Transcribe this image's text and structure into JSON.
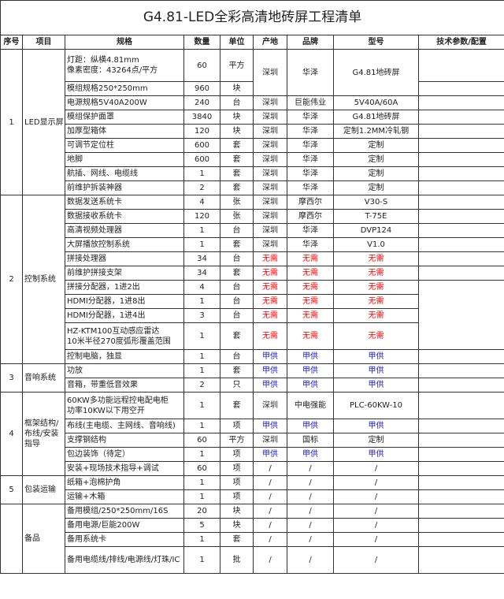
{
  "title": "G4.81-LED全彩高清地砖屏工程清单",
  "headers": [
    "序号",
    "项目",
    "规格",
    "数量",
    "单位",
    "产地",
    "品牌",
    "型号",
    "技术参数/配置"
  ],
  "colors": {
    "无需": "#ff0000",
    "甲供": "#1a1acc"
  },
  "sections": [
    {
      "no": "1",
      "name": "LED显示屏",
      "rows": [
        {
          "spec": "灯距：纵横4.81mm\n像素密度：43264点/平方",
          "qty": "60",
          "unit": "平方",
          "origin": "深圳",
          "brand": "华泽",
          "model": "G4.81地砖屏",
          "tech": ""
        },
        {
          "spec": "模组规格250*250mm",
          "qty": "960",
          "unit": "块",
          "tech": ""
        },
        {
          "spec": "电源规格5V40A200W",
          "qty": "240",
          "unit": "台",
          "origin": "深圳",
          "brand": "巨能伟业",
          "model": "5V40A/60A",
          "tech": ""
        },
        {
          "spec": "模组保护面罩",
          "qty": "3840",
          "unit": "块",
          "origin": "深圳",
          "brand": "华泽",
          "model": "G4.81地砖屏",
          "tech": ""
        },
        {
          "spec": "加厚型箱体",
          "qty": "120",
          "unit": "块",
          "origin": "深圳",
          "brand": "华泽",
          "model": "定制1.2MM冷轧钢",
          "tech": ""
        },
        {
          "spec": "可调节定位柱",
          "qty": "600",
          "unit": "套",
          "origin": "深圳",
          "brand": "华泽",
          "model": "定制",
          "tech": ""
        },
        {
          "spec": "地脚",
          "qty": "600",
          "unit": "套",
          "origin": "深圳",
          "brand": "华泽",
          "model": "定制",
          "tech": ""
        },
        {
          "spec": "航插、网线、电缆线",
          "qty": "1",
          "unit": "套",
          "origin": "深圳",
          "brand": "华泽",
          "model": "定制",
          "tech": ""
        },
        {
          "spec": "前维护拆装神器",
          "qty": "2",
          "unit": "套",
          "origin": "深圳",
          "brand": "华泽",
          "model": "定制",
          "tech": ""
        }
      ]
    },
    {
      "no": "2",
      "name": "控制系统",
      "rows": [
        {
          "spec": "数据发送系统卡",
          "qty": "4",
          "unit": "张",
          "origin": "深圳",
          "brand": "摩西尔",
          "model": "V30-S",
          "tech": ""
        },
        {
          "spec": "数据接收系统卡",
          "qty": "120",
          "unit": "张",
          "origin": "深圳",
          "brand": "摩西尔",
          "model": "T-75E",
          "tech": ""
        },
        {
          "spec": "高清视频处理器",
          "qty": "1",
          "unit": "台",
          "origin": "深圳",
          "brand": "华泽",
          "model": "DVP124",
          "tech": ""
        },
        {
          "spec": "大屏播放控制系统",
          "qty": "1",
          "unit": "套",
          "origin": "深圳",
          "brand": "华泽",
          "model": "V1.0",
          "tech": ""
        },
        {
          "spec": "拼接处理器",
          "qty": "34",
          "unit": "台",
          "origin": "无需",
          "brand": "无需",
          "model": "无需",
          "tech": ""
        },
        {
          "spec": "前维护拼接支架",
          "qty": "34",
          "unit": "套",
          "origin": "无需",
          "brand": "无需",
          "model": "无需",
          "tech": ""
        },
        {
          "spec": "拼接分配器，1进2出",
          "qty": "4",
          "unit": "台",
          "origin": "无需",
          "brand": "无需",
          "model": "无需",
          "tech": ""
        },
        {
          "spec": "HDMI分配器，1进8出",
          "qty": "1",
          "unit": "台",
          "origin": "无需",
          "brand": "无需",
          "model": "无需",
          "tech": ""
        },
        {
          "spec": "HDMI分配器，1进4出",
          "qty": "3",
          "unit": "台",
          "origin": "无需",
          "brand": "无需",
          "model": "无需",
          "tech": ""
        },
        {
          "spec": "HZ-KTM100互动感应雷达\n10米半径270度弧形覆盖范围",
          "qty": "1",
          "unit": "套",
          "origin": "无需",
          "brand": "无需",
          "model": "无需",
          "tech": ""
        },
        {
          "spec": "控制电脑，独显",
          "qty": "1",
          "unit": "台",
          "origin": "甲供",
          "brand": "甲供",
          "model": "甲供",
          "tech": ""
        }
      ]
    },
    {
      "no": "3",
      "name": "音响系统",
      "rows": [
        {
          "spec": "功放",
          "qty": "1",
          "unit": "套",
          "origin": "甲供",
          "brand": "甲供",
          "model": "甲供",
          "tech": ""
        },
        {
          "spec": "音箱，带重低音效果",
          "qty": "2",
          "unit": "只",
          "origin": "甲供",
          "brand": "甲供",
          "model": "甲供",
          "tech": ""
        }
      ]
    },
    {
      "no": "4",
      "name": "框架结构/\n布线/安装\n指导",
      "rows": [
        {
          "spec": "60KW多功能远程控电配电柜\n功率10KW以下用空开",
          "qty": "1",
          "unit": "套",
          "origin": "深圳",
          "brand": "中电强能",
          "model": "PLC-60KW-10",
          "tech": ""
        },
        {
          "spec": "布线(主电缆、主网线、音响线)",
          "qty": "1",
          "unit": "项",
          "origin": "甲供",
          "brand": "甲供",
          "model": "甲供",
          "tech": ""
        },
        {
          "spec": "支撑钢结构",
          "qty": "60",
          "unit": "平方",
          "origin": "深圳",
          "brand": "国标",
          "model": "定制",
          "tech": ""
        },
        {
          "spec": "包边装饰（待定）",
          "qty": "1",
          "unit": "项",
          "origin": "甲供",
          "brand": "甲供",
          "model": "甲供",
          "tech": ""
        },
        {
          "spec": "安装+现场技术指导+调试",
          "qty": "60",
          "unit": "项",
          "origin": "/",
          "brand": "/",
          "model": "/",
          "tech": ""
        }
      ]
    },
    {
      "no": "5",
      "name": "包装运输",
      "rows": [
        {
          "spec": "纸箱+泡棉护角",
          "qty": "1",
          "unit": "项",
          "origin": "/",
          "brand": "/",
          "model": "/",
          "tech": ""
        },
        {
          "spec": "运输+木箱",
          "qty": "1",
          "unit": "项",
          "origin": "/",
          "brand": "/",
          "model": "/",
          "tech": ""
        }
      ]
    },
    {
      "no": "",
      "name": "备品",
      "rows": [
        {
          "spec": "备用模组/250*250mm/16S",
          "qty": "20",
          "unit": "块",
          "origin": "/",
          "brand": "/",
          "model": "/",
          "tech": ""
        },
        {
          "spec": "备用电源/巨能200W",
          "qty": "5",
          "unit": "块",
          "origin": "/",
          "brand": "/",
          "model": "/",
          "tech": ""
        },
        {
          "spec": "备用系统卡",
          "qty": "1",
          "unit": "套",
          "origin": "/",
          "brand": "/",
          "model": "/",
          "tech": ""
        },
        {
          "spec": "备用电缆线/排线/电源线/灯珠/IC",
          "qty": "1",
          "unit": "批",
          "origin": "/",
          "brand": "/",
          "model": "/",
          "tech": ""
        }
      ]
    }
  ]
}
